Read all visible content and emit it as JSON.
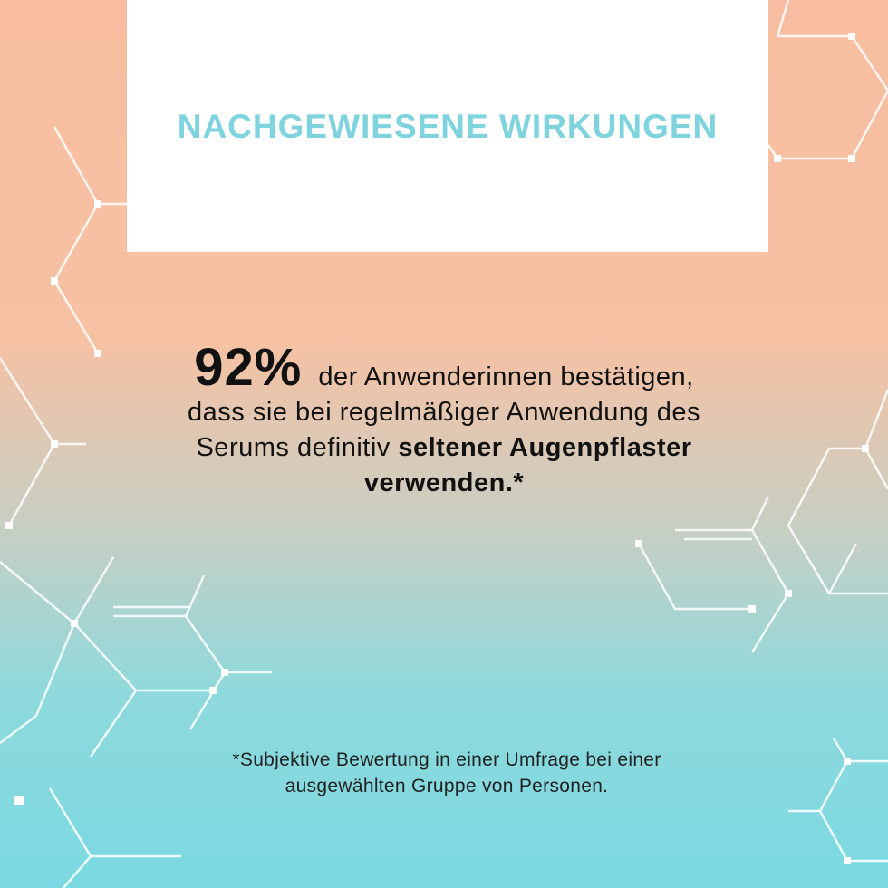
{
  "header": {
    "title": "NACHGEWIESENE WIRKUNGEN"
  },
  "statement": {
    "stat": "92%",
    "lines": [
      [
        "der Anwenderinnen bestätigen,"
      ],
      [
        "dass sie bei regelmäßiger Anwendung des"
      ],
      [
        "Serums definitiv",
        "seltener Augenpflaster"
      ],
      [
        "verwenden.*"
      ]
    ]
  },
  "footnote": {
    "lines": [
      "*Subjektive Bewertung in einer Umfrage bei einer",
      "ausgewählten Gruppe von Personen."
    ]
  }
}
